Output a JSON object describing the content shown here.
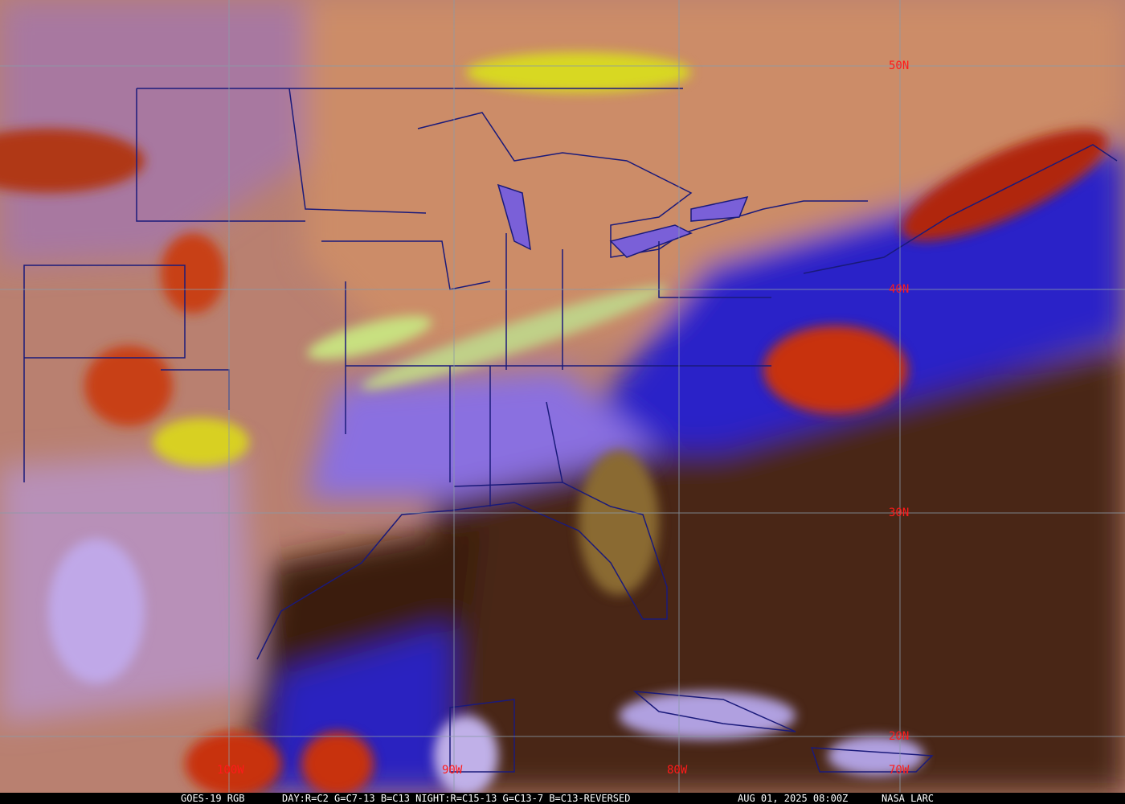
{
  "image": {
    "product": "GOES-19 RGB",
    "recipe": "DAY:R=C2 G=C7-13 B=C13 NIGHT:R=C15-13 G=C13-7 B=C13-REVERSED",
    "datetime": "AUG 01, 2025 08:00Z",
    "credit": "NASA LARC"
  },
  "grid": {
    "latitude_labels": [
      "50N",
      "40N",
      "30N",
      "20N"
    ],
    "longitude_labels": [
      "100W",
      "90W",
      "80W",
      "70W"
    ],
    "label_color": "#ff1a1a",
    "grid_color": "#8a9aa8",
    "border_color": "#1a1a7a"
  },
  "colors": {
    "clear_land": "#c98868",
    "clear_ocean": "#4a2612",
    "high_cloud": "#3a28e0",
    "deep_convection": "#c02a10",
    "low_cloud": "#e0d820",
    "mid_cloud": "#9a80e8"
  }
}
